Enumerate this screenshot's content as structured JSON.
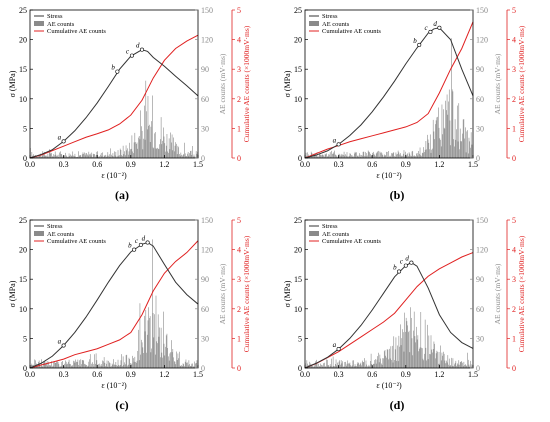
{
  "chart_data": [
    {
      "type": "line",
      "panel_label": "(a)",
      "xlabel": "ε (10⁻²)",
      "ylabel": "σ (MPa)",
      "y2label": "AE counts (mV·ms)",
      "y3label": "Cumulative AE counts (×1000mV·ms)",
      "xlim": [
        0,
        1.5
      ],
      "ylim": [
        0,
        25
      ],
      "y2lim": [
        0,
        150
      ],
      "y3lim": [
        0,
        5
      ],
      "xticks": [
        "0.0",
        "0.3",
        "0.6",
        "0.9",
        "1.2",
        "1.5"
      ],
      "yticks": [
        "0",
        "5",
        "10",
        "15",
        "20",
        "25"
      ],
      "y2ticks": [
        "0",
        "30",
        "60",
        "90",
        "120",
        "150"
      ],
      "y3ticks": [
        "0",
        "1",
        "2",
        "3",
        "4",
        "5"
      ],
      "legend": [
        "Stress",
        "AE counts",
        "Cumulative AE counts"
      ],
      "legend_position": "top-left",
      "series": [
        {
          "name": "Stress",
          "color": "#333333",
          "x": [
            0,
            0.1,
            0.2,
            0.3,
            0.4,
            0.5,
            0.6,
            0.7,
            0.8,
            0.9,
            1.0,
            1.05,
            1.1,
            1.2,
            1.3,
            1.4,
            1.5
          ],
          "y": [
            0,
            0.6,
            1.4,
            2.8,
            4.6,
            6.8,
            9.3,
            12.1,
            15.0,
            17.2,
            18.3,
            18.0,
            17.0,
            15.5,
            13.8,
            12.2,
            10.5
          ]
        },
        {
          "name": "Cumulative AE counts",
          "color": "#e02020",
          "x": [
            0,
            0.1,
            0.2,
            0.3,
            0.4,
            0.5,
            0.6,
            0.7,
            0.8,
            0.9,
            1.0,
            1.1,
            1.2,
            1.3,
            1.4,
            1.5
          ],
          "y": [
            0,
            0.1,
            0.25,
            0.4,
            0.55,
            0.7,
            0.82,
            0.95,
            1.15,
            1.45,
            1.95,
            2.7,
            3.3,
            3.7,
            3.95,
            4.15
          ]
        }
      ],
      "ae": {
        "bg": 7,
        "peak": 60,
        "peak_x": 1.08,
        "spread": 0.17
      },
      "points": [
        {
          "label": "a",
          "x": 0.3,
          "y": 2.8
        },
        {
          "label": "b",
          "x": 0.78,
          "y": 14.6
        },
        {
          "label": "c",
          "x": 0.91,
          "y": 17.3
        },
        {
          "label": "d",
          "x": 1.0,
          "y": 18.3
        }
      ]
    },
    {
      "type": "line",
      "panel_label": "(b)",
      "xlabel": "ε (10⁻²)",
      "ylabel": "σ (MPa)",
      "y2label": "AE counts (mV·ms)",
      "y3label": "Cumulative AE counts (×1000mV·ms)",
      "xlim": [
        0,
        1.5
      ],
      "ylim": [
        0,
        25
      ],
      "y2lim": [
        0,
        150
      ],
      "y3lim": [
        0,
        5
      ],
      "xticks": [
        "0.0",
        "0.3",
        "0.6",
        "0.9",
        "1.2",
        "1.5"
      ],
      "yticks": [
        "0",
        "5",
        "10",
        "15",
        "20",
        "25"
      ],
      "y2ticks": [
        "0",
        "30",
        "60",
        "90",
        "120",
        "150"
      ],
      "y3ticks": [
        "0",
        "1",
        "2",
        "3",
        "4",
        "5"
      ],
      "legend": [
        "Stress",
        "AE counts",
        "Cumulative AE counts"
      ],
      "legend_position": "top-left",
      "series": [
        {
          "name": "Stress",
          "color": "#333333",
          "x": [
            0,
            0.1,
            0.2,
            0.3,
            0.4,
            0.5,
            0.6,
            0.7,
            0.8,
            0.9,
            1.0,
            1.1,
            1.15,
            1.2,
            1.3,
            1.4,
            1.5
          ],
          "y": [
            0,
            0.5,
            1.2,
            2.3,
            3.8,
            5.6,
            7.8,
            10.3,
            13.0,
            15.9,
            18.6,
            21.1,
            21.8,
            22.0,
            20.0,
            15.0,
            10.5
          ]
        },
        {
          "name": "Cumulative AE counts",
          "color": "#e02020",
          "x": [
            0,
            0.1,
            0.2,
            0.3,
            0.4,
            0.5,
            0.6,
            0.7,
            0.8,
            0.9,
            1.0,
            1.1,
            1.2,
            1.3,
            1.4,
            1.5
          ],
          "y": [
            0,
            0.15,
            0.3,
            0.42,
            0.55,
            0.65,
            0.75,
            0.85,
            0.95,
            1.05,
            1.2,
            1.5,
            2.2,
            3.0,
            3.7,
            4.6
          ]
        }
      ],
      "ae": {
        "bg": 8,
        "peak": 78,
        "peak_x": 1.28,
        "spread": 0.15
      },
      "points": [
        {
          "label": "a",
          "x": 0.3,
          "y": 2.3
        },
        {
          "label": "b",
          "x": 1.02,
          "y": 19.1
        },
        {
          "label": "c",
          "x": 1.12,
          "y": 21.3
        },
        {
          "label": "d",
          "x": 1.2,
          "y": 22.0
        }
      ]
    },
    {
      "type": "line",
      "panel_label": "(c)",
      "xlabel": "ε (10⁻²)",
      "ylabel": "σ (MPa)",
      "y2label": "AE counts (mV·ms)",
      "y3label": "Cumulative AE counts (×1000mV·ms)",
      "xlim": [
        0,
        1.5
      ],
      "ylim": [
        0,
        25
      ],
      "y2lim": [
        0,
        150
      ],
      "y3lim": [
        0,
        5
      ],
      "xticks": [
        "0.0",
        "0.3",
        "0.6",
        "0.9",
        "1.2",
        "1.5"
      ],
      "yticks": [
        "0",
        "5",
        "10",
        "15",
        "20",
        "25"
      ],
      "y2ticks": [
        "0",
        "30",
        "60",
        "90",
        "120",
        "150"
      ],
      "y3ticks": [
        "0",
        "1",
        "2",
        "3",
        "4",
        "5"
      ],
      "legend": [
        "Stress",
        "AE counts",
        "Cumulative AE counts"
      ],
      "legend_position": "top-left",
      "series": [
        {
          "name": "Stress",
          "color": "#333333",
          "x": [
            0,
            0.1,
            0.2,
            0.3,
            0.4,
            0.5,
            0.6,
            0.7,
            0.8,
            0.9,
            1.0,
            1.05,
            1.1,
            1.2,
            1.3,
            1.4,
            1.5
          ],
          "y": [
            0,
            0.8,
            2.0,
            3.8,
            6.0,
            8.6,
            11.5,
            14.5,
            17.3,
            19.6,
            20.9,
            21.2,
            20.6,
            17.5,
            14.5,
            12.4,
            10.8
          ]
        },
        {
          "name": "Cumulative AE counts",
          "color": "#e02020",
          "x": [
            0,
            0.1,
            0.2,
            0.3,
            0.4,
            0.5,
            0.6,
            0.7,
            0.8,
            0.9,
            1.0,
            1.1,
            1.2,
            1.3,
            1.4,
            1.5
          ],
          "y": [
            0,
            0.1,
            0.2,
            0.3,
            0.45,
            0.55,
            0.65,
            0.8,
            0.95,
            1.2,
            1.8,
            2.6,
            3.2,
            3.6,
            3.9,
            4.3
          ]
        }
      ],
      "ae": {
        "bg": 9,
        "peak": 70,
        "peak_x": 1.1,
        "spread": 0.15
      },
      "points": [
        {
          "label": "a",
          "x": 0.3,
          "y": 3.8
        },
        {
          "label": "b",
          "x": 0.93,
          "y": 20.0
        },
        {
          "label": "c",
          "x": 0.99,
          "y": 20.8
        },
        {
          "label": "d",
          "x": 1.05,
          "y": 21.2
        }
      ]
    },
    {
      "type": "line",
      "panel_label": "(d)",
      "xlabel": "ε (10⁻²)",
      "ylabel": "σ (MPa)",
      "y2label": "AE counts (mV·ms)",
      "y3label": "Cumulative AE counts (×1000mV·ms)",
      "xlim": [
        0,
        1.5
      ],
      "ylim": [
        0,
        25
      ],
      "y2lim": [
        0,
        150
      ],
      "y3lim": [
        0,
        5
      ],
      "xticks": [
        "0.0",
        "0.3",
        "0.6",
        "0.9",
        "1.2",
        "1.5"
      ],
      "yticks": [
        "0",
        "5",
        "10",
        "15",
        "20",
        "25"
      ],
      "y2ticks": [
        "0",
        "30",
        "60",
        "90",
        "120",
        "150"
      ],
      "y3ticks": [
        "0",
        "1",
        "2",
        "3",
        "4",
        "5"
      ],
      "legend": [
        "Stress",
        "AE counts",
        "Cumulative AE counts"
      ],
      "legend_position": "top-left",
      "series": [
        {
          "name": "Stress",
          "color": "#333333",
          "x": [
            0,
            0.1,
            0.2,
            0.3,
            0.4,
            0.5,
            0.6,
            0.7,
            0.8,
            0.9,
            0.95,
            1.0,
            1.1,
            1.2,
            1.3,
            1.4,
            1.5
          ],
          "y": [
            0,
            0.8,
            1.8,
            3.2,
            5.0,
            7.2,
            9.8,
            12.6,
            15.4,
            17.3,
            17.8,
            17.2,
            13.5,
            9.0,
            6.0,
            4.3,
            3.3
          ]
        },
        {
          "name": "Cumulative AE counts",
          "color": "#e02020",
          "x": [
            0,
            0.1,
            0.2,
            0.3,
            0.4,
            0.5,
            0.6,
            0.7,
            0.8,
            0.9,
            1.0,
            1.1,
            1.2,
            1.3,
            1.4,
            1.5
          ],
          "y": [
            0,
            0.15,
            0.35,
            0.55,
            0.8,
            1.05,
            1.3,
            1.55,
            1.85,
            2.3,
            2.75,
            3.1,
            3.35,
            3.55,
            3.75,
            3.9
          ]
        }
      ],
      "ae": {
        "bg": 9,
        "peak": 55,
        "peak_x": 0.96,
        "spread": 0.2
      },
      "points": [
        {
          "label": "a",
          "x": 0.3,
          "y": 3.2
        },
        {
          "label": "b",
          "x": 0.84,
          "y": 16.3
        },
        {
          "label": "c",
          "x": 0.9,
          "y": 17.3
        },
        {
          "label": "d",
          "x": 0.95,
          "y": 17.8
        }
      ]
    }
  ],
  "colors": {
    "stress": "#333333",
    "ae_bars": "#8a8a8a",
    "cumulative": "#e02020"
  }
}
